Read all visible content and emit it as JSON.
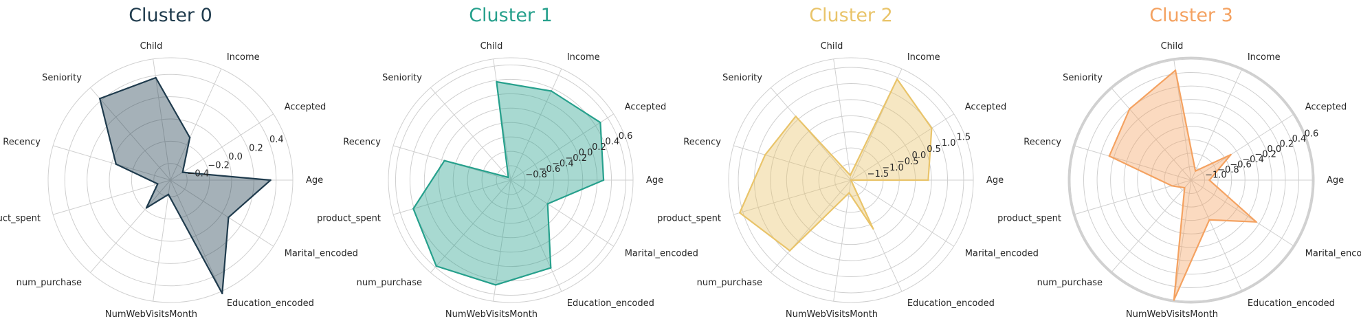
{
  "chart_data": [
    {
      "type": "radar",
      "title": "Cluster 0",
      "color": "#1f3b4d",
      "categories": [
        "Age",
        "Accepted",
        "Income",
        "Child",
        "Seniority",
        "Recency",
        "product_spent",
        "num_purchase",
        "NumWebVisitsMonth",
        "Education_encoded",
        "Marital_encoded"
      ],
      "values": [
        0.35,
        -0.42,
        -0.13,
        0.38,
        0.42,
        -0.04,
        -0.43,
        -0.22,
        -0.42,
        0.57,
        0.07
      ],
      "rlim": [
        -0.55,
        0.55
      ],
      "rticks": [
        -0.4,
        -0.2,
        0.0,
        0.2,
        0.4
      ],
      "rtick_labels": [
        "−0.4",
        "−0.2",
        "0.0",
        "0.2",
        "0.4"
      ],
      "grid": true
    },
    {
      "type": "radar",
      "title": "Cluster 1",
      "color": "#26a08c",
      "categories": [
        "Age",
        "Accepted",
        "Income",
        "Child",
        "Seniority",
        "Recency",
        "product_spent",
        "num_purchase",
        "NumWebVisitsMonth",
        "Education_encoded",
        "Marital_encoded"
      ],
      "values": [
        0.29,
        0.48,
        0.36,
        0.38,
        -0.95,
        -0.04,
        0.41,
        0.58,
        0.47,
        0.34,
        -0.39
      ],
      "rlim": [
        -1.0,
        0.7
      ],
      "rticks": [
        -0.8,
        -0.6,
        -0.4,
        -0.2,
        0.0,
        0.2,
        0.4,
        0.6
      ],
      "rtick_labels": [
        "−0.8",
        "−0.6",
        "−0.4",
        "−0.2",
        "0.0",
        "0.2",
        "0.4",
        "0.6"
      ],
      "grid": true
    },
    {
      "type": "radar",
      "title": "Cluster 2",
      "color": "#e9c46a",
      "categories": [
        "Age",
        "Accepted",
        "Income",
        "Child",
        "Seniority",
        "Recency",
        "product_spent",
        "num_purchase",
        "NumWebVisitsMonth",
        "Education_encoded",
        "Marital_encoded"
      ],
      "values": [
        0.4,
        0.98,
        1.45,
        -1.85,
        0.62,
        0.78,
        1.6,
        0.9,
        -1.6,
        -0.34,
        -2.0
      ],
      "rlim": [
        -2.0,
        1.8
      ],
      "rticks": [
        -1.5,
        -1.0,
        -0.5,
        0.0,
        0.5,
        1.0,
        1.5
      ],
      "rtick_labels": [
        "−1.5",
        "−1.0",
        "−0.5",
        "0.0",
        "0.5",
        "1.0",
        "1.5"
      ],
      "grid": true
    },
    {
      "type": "radar",
      "title": "Cluster 3",
      "color": "#f4a261",
      "categories": [
        "Age",
        "Accepted",
        "Income",
        "Child",
        "Seniority",
        "Recency",
        "product_spent",
        "num_purchase",
        "NumWebVisitsMonth",
        "Education_encoded",
        "Marital_encoded"
      ],
      "values": [
        -0.93,
        -0.5,
        -1.05,
        0.45,
        0.2,
        0.07,
        -0.9,
        -1.05,
        0.6,
        -0.55,
        -0.05
      ],
      "rlim": [
        -1.2,
        0.62
      ],
      "rticks": [
        -1.0,
        -0.8,
        -0.6,
        -0.4,
        -0.2,
        0.0,
        0.2,
        0.4,
        0.6
      ],
      "rtick_labels": [
        "−1.0",
        "−0.8",
        "−0.6",
        "−0.4",
        "−0.2",
        "0.0",
        "0.2",
        "0.4",
        "0.6"
      ],
      "grid": true
    }
  ]
}
